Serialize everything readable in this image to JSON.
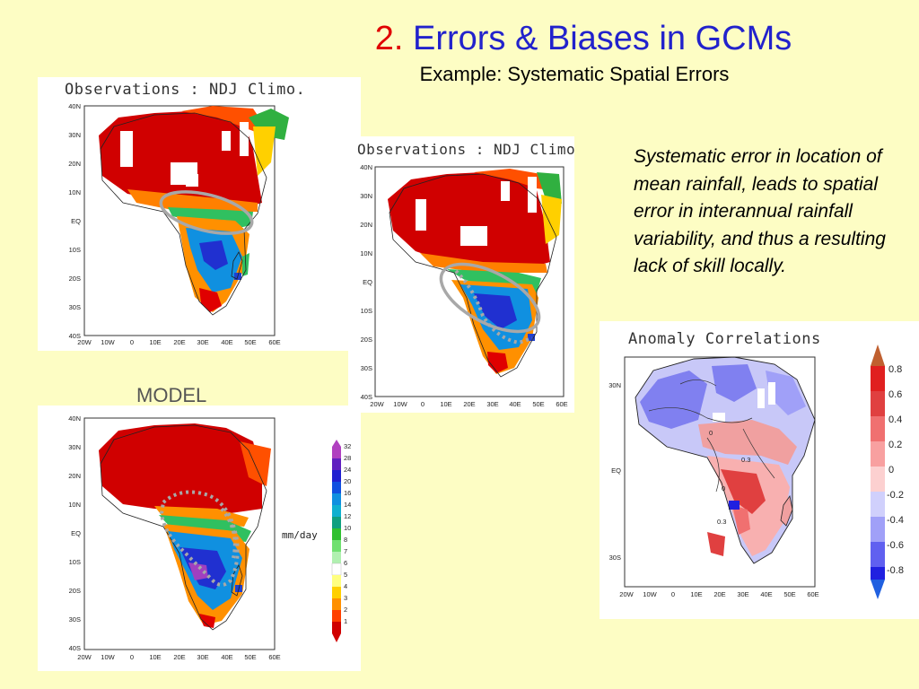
{
  "slide": {
    "title_number": "2.",
    "title_text": "Errors & Biases in GCMs",
    "subtitle": "Example: Systematic Spatial Errors",
    "body_text": "Systematic error in location of mean rainfall, leads to spatial error in interannual rainfall variability, and thus a resulting lack of skill locally.",
    "model_label": "MODEL"
  },
  "panels": {
    "obs_top": {
      "title": "Observations : NDJ Climo.",
      "lat_ticks": [
        "40N",
        "30N",
        "20N",
        "10N",
        "EQ",
        "10S",
        "20S",
        "30S",
        "40S"
      ],
      "lon_ticks": [
        "20W",
        "10W",
        "0",
        "10E",
        "20E",
        "30E",
        "40E",
        "50E",
        "60E"
      ]
    },
    "obs_right": {
      "title": "Observations : NDJ Climo",
      "lat_ticks": [
        "40N",
        "30N",
        "20N",
        "10N",
        "EQ",
        "10S",
        "20S",
        "30S",
        "40S"
      ],
      "lon_ticks": [
        "20W",
        "10W",
        "0",
        "10E",
        "20E",
        "30E",
        "40E",
        "50E",
        "60E"
      ]
    },
    "model": {
      "lat_ticks": [
        "40N",
        "30N",
        "20N",
        "10N",
        "EQ",
        "10S",
        "20S",
        "30S",
        "40S"
      ],
      "lon_ticks": [
        "20W",
        "10W",
        "0",
        "10E",
        "20E",
        "30E",
        "40E",
        "50E",
        "60E"
      ],
      "units": "mm/day",
      "colorbar_labels": [
        "32",
        "28",
        "24",
        "20",
        "16",
        "14",
        "12",
        "10",
        "8",
        "7",
        "6",
        "5",
        "4",
        "3",
        "2",
        "1"
      ],
      "colorbar_colors": [
        "#b040c0",
        "#6020c0",
        "#2020d0",
        "#1050e0",
        "#1090e0",
        "#10b0d0",
        "#10a080",
        "#30c030",
        "#70e070",
        "#b0f0b0",
        "#ffffff",
        "#ffff80",
        "#ffd000",
        "#ff9000",
        "#ff4000",
        "#d00000"
      ]
    },
    "anomaly": {
      "title": "Anomaly Correlations",
      "lat_ticks": [
        "30N",
        "EQ",
        "30S"
      ],
      "lon_ticks": [
        "20W",
        "10W",
        "0",
        "10E",
        "20E",
        "30E",
        "40E",
        "50E",
        "60E"
      ],
      "contour_labels": [
        "0",
        "0.3",
        "0",
        "0.3"
      ],
      "colorbar_labels": [
        "0.8",
        "0.6",
        "0.4",
        "0.2",
        "0",
        "-0.2",
        "-0.4",
        "-0.6",
        "-0.8"
      ],
      "colorbar_colors": [
        "#c02020",
        "#e04040",
        "#f07070",
        "#f8a0a0",
        "#fcd0d0",
        "#d0d0fc",
        "#a0a0f8",
        "#6060f0",
        "#2020e0",
        "#0000c0"
      ]
    }
  },
  "colors": {
    "background": "#fdfdc4",
    "title_number": "#e00000",
    "title_text": "#2222cc",
    "highlight_ellipse": "#a8a8a8"
  }
}
